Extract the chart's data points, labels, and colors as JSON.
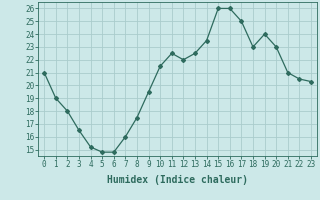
{
  "x": [
    0,
    1,
    2,
    3,
    4,
    5,
    6,
    7,
    8,
    9,
    10,
    11,
    12,
    13,
    14,
    15,
    16,
    17,
    18,
    19,
    20,
    21,
    22,
    23
  ],
  "y": [
    21,
    19,
    18,
    16.5,
    15.2,
    14.8,
    14.8,
    16,
    17.5,
    19.5,
    21.5,
    22.5,
    22,
    22.5,
    23.5,
    26,
    26,
    25,
    23,
    24,
    23,
    21,
    20.5,
    20.3
  ],
  "line_color": "#2e6b5e",
  "marker": "D",
  "marker_size": 2,
  "bg_color": "#cce8e8",
  "grid_color": "#aacccc",
  "xlabel": "Humidex (Indice chaleur)",
  "xlim": [
    -0.5,
    23.5
  ],
  "ylim": [
    14.5,
    26.5
  ],
  "yticks": [
    15,
    16,
    17,
    18,
    19,
    20,
    21,
    22,
    23,
    24,
    25,
    26
  ],
  "xticks": [
    0,
    1,
    2,
    3,
    4,
    5,
    6,
    7,
    8,
    9,
    10,
    11,
    12,
    13,
    14,
    15,
    16,
    17,
    18,
    19,
    20,
    21,
    22,
    23
  ],
  "tick_color": "#2e6b5e",
  "xlabel_fontsize": 7,
  "tick_labelsize": 5.5
}
